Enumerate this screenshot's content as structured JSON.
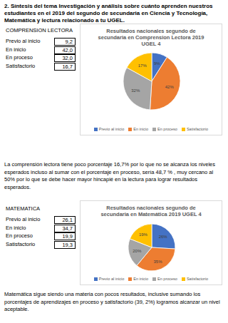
{
  "header": {
    "title": "2. Síntesis del tema Investigación y análisis sobre cuánto aprenden nuestros estudiantes en el 2019 del segundo de secundaria en Ciencia y Tecnología, Matemática y lectura relacionado a tu UGEL."
  },
  "sections": [
    {
      "title": "COMPRENSION LECTORA",
      "table": {
        "rows": [
          [
            "Previo al inicio",
            "9,2"
          ],
          [
            "En inicio",
            "42,0"
          ],
          [
            "En proceso",
            "32,0"
          ],
          [
            "Satisfactorio",
            "16,7"
          ]
        ]
      },
      "paragraph": "La comprensión lectora tiene poco porcentaje 16,7% por lo que no se alcanza los niveles esperados incluso al sumar con el porcentaje en proceso, sería 48,7 % , muy cercano al 50% por lo que se debe hacer mayor hincapié en la lectura para lograr resultados esperados."
    },
    {
      "title": "MATEMATICA",
      "table": {
        "rows": [
          [
            "Previo al inicio",
            "26,1"
          ],
          [
            "En inicio",
            "34,7"
          ],
          [
            "En proceso",
            "19,9"
          ],
          [
            "Satisfactorio",
            "19,3"
          ]
        ]
      },
      "paragraph": "Matemática sigue siendo una materia con pocos resultados, inclusive sumando los porcentajes de aprendizajes en proceso y satisfactorio (39, 2%) logramos alcanzar un nivel aceptable."
    }
  ],
  "chart_data": [
    {
      "type": "pie",
      "title": "Resultados nacionales segundo de secundaria en Comprension Lectora 2019 UGEL 4",
      "categories": [
        "Previo al inicio",
        "En inicio",
        "En proceso",
        "Satisfactorio"
      ],
      "values": [
        9,
        42,
        32,
        17
      ],
      "value_labels": [
        "9%",
        "42%",
        "32%",
        "17%"
      ],
      "colors": [
        "#4472c4",
        "#ed7d31",
        "#a5a5a5",
        "#ffc000"
      ],
      "data_labels": true,
      "legend": "bottom"
    },
    {
      "type": "pie",
      "title": "Resultados nacionales segundo de secundaria en Matemática 2019 UGEL 4",
      "categories": [
        "Previo al inicio",
        "En inicio",
        "En proceso",
        "Satisfactorio"
      ],
      "values": [
        26,
        35,
        20,
        19
      ],
      "value_labels": [
        "26%",
        "35%",
        "20%",
        "19%"
      ],
      "colors": [
        "#4472c4",
        "#ed7d31",
        "#a5a5a5",
        "#ffc000"
      ],
      "data_labels": true,
      "legend": "bottom"
    }
  ]
}
